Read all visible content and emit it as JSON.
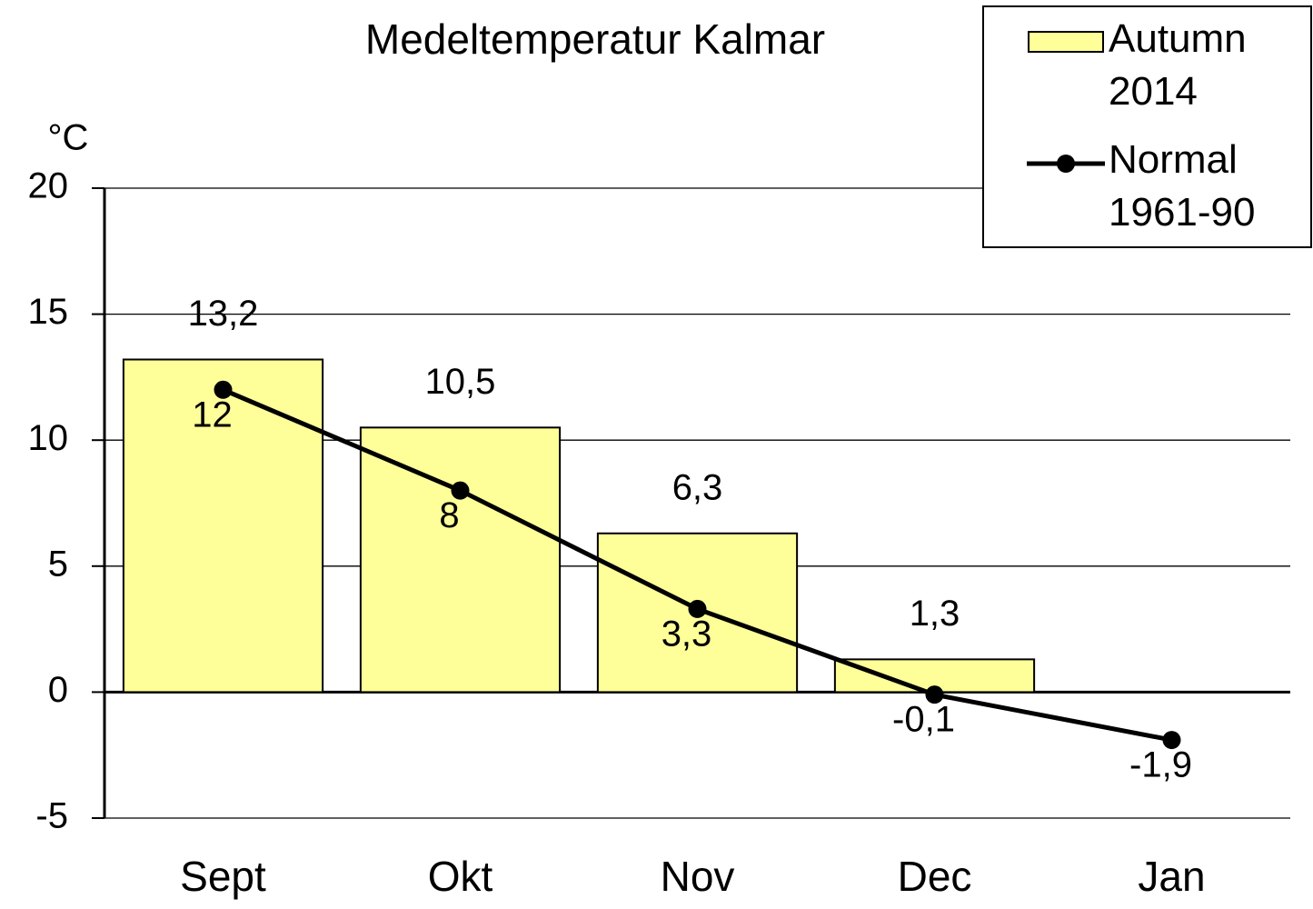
{
  "chart_data": {
    "type": "bar",
    "title": "Medeltemperatur Kalmar",
    "y_label": "°C",
    "categories": [
      "Sept",
      "Okt",
      "Nov",
      "Dec",
      "Jan"
    ],
    "series": [
      {
        "name": "Autumn 2014",
        "type": "bar",
        "color": "#ffff99",
        "values": [
          13.2,
          10.5,
          6.3,
          1.3,
          null
        ],
        "value_labels": [
          "13,2",
          "10,5",
          "6,3",
          "1,3",
          null
        ]
      },
      {
        "name": "Normal 1961-90",
        "type": "line",
        "color": "#000000",
        "values": [
          12,
          8,
          3.3,
          -0.1,
          -1.9
        ],
        "value_labels": [
          "12",
          "8",
          "3,3",
          "-0,1",
          "-1,9"
        ]
      }
    ],
    "ylim": [
      -5,
      20
    ],
    "yticks": [
      -5,
      0,
      5,
      10,
      15,
      20
    ],
    "grid": true,
    "legend": "top-right"
  }
}
